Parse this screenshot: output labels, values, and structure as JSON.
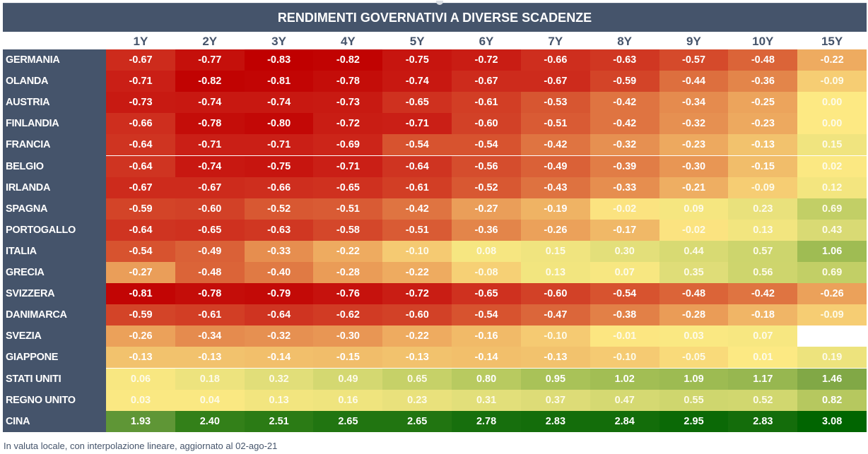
{
  "chart_data": {
    "type": "heatmap",
    "title": "RENDIMENTI GOVERNATIVI A DIVERSE SCADENZE",
    "xlabel": "",
    "ylabel": "",
    "columns": [
      "1Y",
      "2Y",
      "3Y",
      "4Y",
      "5Y",
      "6Y",
      "7Y",
      "8Y",
      "9Y",
      "10Y",
      "15Y"
    ],
    "rows": [
      "GERMANIA",
      "OLANDA",
      "AUSTRIA",
      "FINLANDIA",
      "FRANCIA",
      "BELGIO",
      "IRLANDA",
      "SPAGNA",
      "PORTOGALLO",
      "ITALIA",
      "GRECIA",
      "SVIZZERA",
      "DANIMARCA",
      "SVEZIA",
      "GIAPPONE",
      "STATI UNITI",
      "REGNO UNITO",
      "CINA"
    ],
    "values": [
      [
        -0.67,
        -0.77,
        -0.83,
        -0.82,
        -0.75,
        -0.72,
        -0.66,
        -0.63,
        -0.57,
        -0.48,
        -0.22
      ],
      [
        -0.71,
        -0.82,
        -0.81,
        -0.78,
        -0.74,
        -0.67,
        -0.67,
        -0.59,
        -0.44,
        -0.36,
        -0.09
      ],
      [
        -0.73,
        -0.74,
        -0.74,
        -0.73,
        -0.65,
        -0.61,
        -0.53,
        -0.42,
        -0.34,
        -0.25,
        0.0
      ],
      [
        -0.66,
        -0.78,
        -0.8,
        -0.72,
        -0.71,
        -0.6,
        -0.51,
        -0.42,
        -0.32,
        -0.23,
        0.0
      ],
      [
        -0.64,
        -0.71,
        -0.71,
        -0.69,
        -0.54,
        -0.54,
        -0.42,
        -0.32,
        -0.23,
        -0.13,
        0.15
      ],
      [
        -0.64,
        -0.74,
        -0.75,
        -0.71,
        -0.64,
        -0.56,
        -0.49,
        -0.39,
        -0.3,
        -0.15,
        0.02
      ],
      [
        -0.67,
        -0.67,
        -0.66,
        -0.65,
        -0.61,
        -0.52,
        -0.43,
        -0.33,
        -0.21,
        -0.09,
        0.12
      ],
      [
        -0.59,
        -0.6,
        -0.52,
        -0.51,
        -0.42,
        -0.27,
        -0.19,
        -0.02,
        0.09,
        0.23,
        0.69
      ],
      [
        -0.64,
        -0.65,
        -0.63,
        -0.58,
        -0.51,
        -0.36,
        -0.26,
        -0.17,
        -0.02,
        0.13,
        0.43
      ],
      [
        -0.54,
        -0.49,
        -0.33,
        -0.22,
        -0.1,
        0.08,
        0.15,
        0.3,
        0.44,
        0.57,
        1.06
      ],
      [
        -0.27,
        -0.48,
        -0.4,
        -0.28,
        -0.22,
        -0.08,
        0.13,
        0.07,
        0.35,
        0.56,
        0.69
      ],
      [
        -0.81,
        -0.78,
        -0.79,
        -0.76,
        -0.72,
        -0.65,
        -0.6,
        -0.54,
        -0.48,
        -0.42,
        -0.26
      ],
      [
        -0.59,
        -0.61,
        -0.64,
        -0.62,
        -0.6,
        -0.54,
        -0.47,
        -0.38,
        -0.28,
        -0.18,
        -0.09
      ],
      [
        -0.26,
        -0.34,
        -0.32,
        -0.3,
        -0.22,
        -0.16,
        -0.1,
        -0.01,
        0.03,
        0.07,
        null
      ],
      [
        -0.13,
        -0.13,
        -0.14,
        -0.15,
        -0.13,
        -0.14,
        -0.13,
        -0.1,
        -0.05,
        0.01,
        0.19
      ],
      [
        0.06,
        0.18,
        0.32,
        0.49,
        0.65,
        0.8,
        0.95,
        1.02,
        1.09,
        1.17,
        1.46
      ],
      [
        0.03,
        0.04,
        0.13,
        0.16,
        0.23,
        0.31,
        0.37,
        0.47,
        0.55,
        0.52,
        0.82
      ],
      [
        1.93,
        2.4,
        2.51,
        2.65,
        2.65,
        2.78,
        2.83,
        2.84,
        2.95,
        2.83,
        3.08
      ]
    ],
    "display": [
      [
        "-0.67",
        "-0.77",
        "-0.83",
        "-0.82",
        "-0.75",
        "-0.72",
        "-0.66",
        "-0.63",
        "-0.57",
        "-0.48",
        "-0.22"
      ],
      [
        "-0.71",
        "-0.82",
        "-0.81",
        "-0.78",
        "-0.74",
        "-0.67",
        "-0.67",
        "-0.59",
        "-0.44",
        "-0.36",
        "-0.09"
      ],
      [
        "-0.73",
        "-0.74",
        "-0.74",
        "-0.73",
        "-0.65",
        "-0.61",
        "-0.53",
        "-0.42",
        "-0.34",
        "-0.25",
        "0.00"
      ],
      [
        "-0.66",
        "-0.78",
        "-0.80",
        "-0.72",
        "-0.71",
        "-0.60",
        "-0.51",
        "-0.42",
        "-0.32",
        "-0.23",
        "0.00"
      ],
      [
        "-0.64",
        "-0.71",
        "-0.71",
        "-0.69",
        "-0.54",
        "-0.54",
        "-0.42",
        "-0.32",
        "-0.23",
        "-0.13",
        "0.15"
      ],
      [
        "-0.64",
        "-0.74",
        "-0.75",
        "-0.71",
        "-0.64",
        "-0.56",
        "-0.49",
        "-0.39",
        "-0.30",
        "-0.15",
        "0.02"
      ],
      [
        "-0.67",
        "-0.67",
        "-0.66",
        "-0.65",
        "-0.61",
        "-0.52",
        "-0.43",
        "-0.33",
        "-0.21",
        "-0.09",
        "0.12"
      ],
      [
        "-0.59",
        "-0.60",
        "-0.52",
        "-0.51",
        "-0.42",
        "-0.27",
        "-0.19",
        "-0.02",
        "0.09",
        "0.23",
        "0.69"
      ],
      [
        "-0.64",
        "-0.65",
        "-0.63",
        "-0.58",
        "-0.51",
        "-0.36",
        "-0.26",
        "-0.17",
        "-0.02",
        "0.13",
        "0.43"
      ],
      [
        "-0.54",
        "-0.49",
        "-0.33",
        "-0.22",
        "-0.10",
        "0.08",
        "0.15",
        "0.30",
        "0.44",
        "0.57",
        "1.06"
      ],
      [
        "-0.27",
        "-0.48",
        "-0.40",
        "-0.28",
        "-0.22",
        "-0.08",
        "0.13",
        "0.07",
        "0.35",
        "0.56",
        "0.69"
      ],
      [
        "-0.81",
        "-0.78",
        "-0.79",
        "-0.76",
        "-0.72",
        "-0.65",
        "-0.60",
        "-0.54",
        "-0.48",
        "-0.42",
        "-0.26"
      ],
      [
        "-0.59",
        "-0.61",
        "-0.64",
        "-0.62",
        "-0.60",
        "-0.54",
        "-0.47",
        "-0.38",
        "-0.28",
        "-0.18",
        "-0.09"
      ],
      [
        "-0.26",
        "-0.34",
        "-0.32",
        "-0.30",
        "-0.22",
        "-0.16",
        "-0.10",
        "-0.01",
        "0.03",
        "0.07",
        ""
      ],
      [
        "-0.13",
        "-0.13",
        "-0.14",
        "-0.15",
        "-0.13",
        "-0.14",
        "-0.13",
        "-0.10",
        "-0.05",
        "0.01",
        "0.19"
      ],
      [
        "0.06",
        "0.18",
        "0.32",
        "0.49",
        "0.65",
        "0.80",
        "0.95",
        "1.02",
        "1.09",
        "1.17",
        "1.46"
      ],
      [
        "0.03",
        "0.04",
        "0.13",
        "0.16",
        "0.23",
        "0.31",
        "0.37",
        "0.47",
        "0.55",
        "0.52",
        "0.82"
      ],
      [
        "1.93",
        "2.40",
        "2.51",
        "2.65",
        "2.65",
        "2.78",
        "2.83",
        "2.84",
        "2.95",
        "2.83",
        "3.08"
      ]
    ],
    "color_scale": {
      "low_color": "#c00000",
      "mid_color": "#fde983",
      "high_color": "#006400",
      "mid_value": 0.0,
      "missing_color": "#ffffff"
    },
    "legend": "none",
    "grid": false
  },
  "footnote": "In valuta locale, con interpolazione lineare, aggiornato al 02-ago-21",
  "colors": {
    "header_bg": "#45546b",
    "header_text": "#ffffff",
    "column_header_text": "#45546b"
  }
}
